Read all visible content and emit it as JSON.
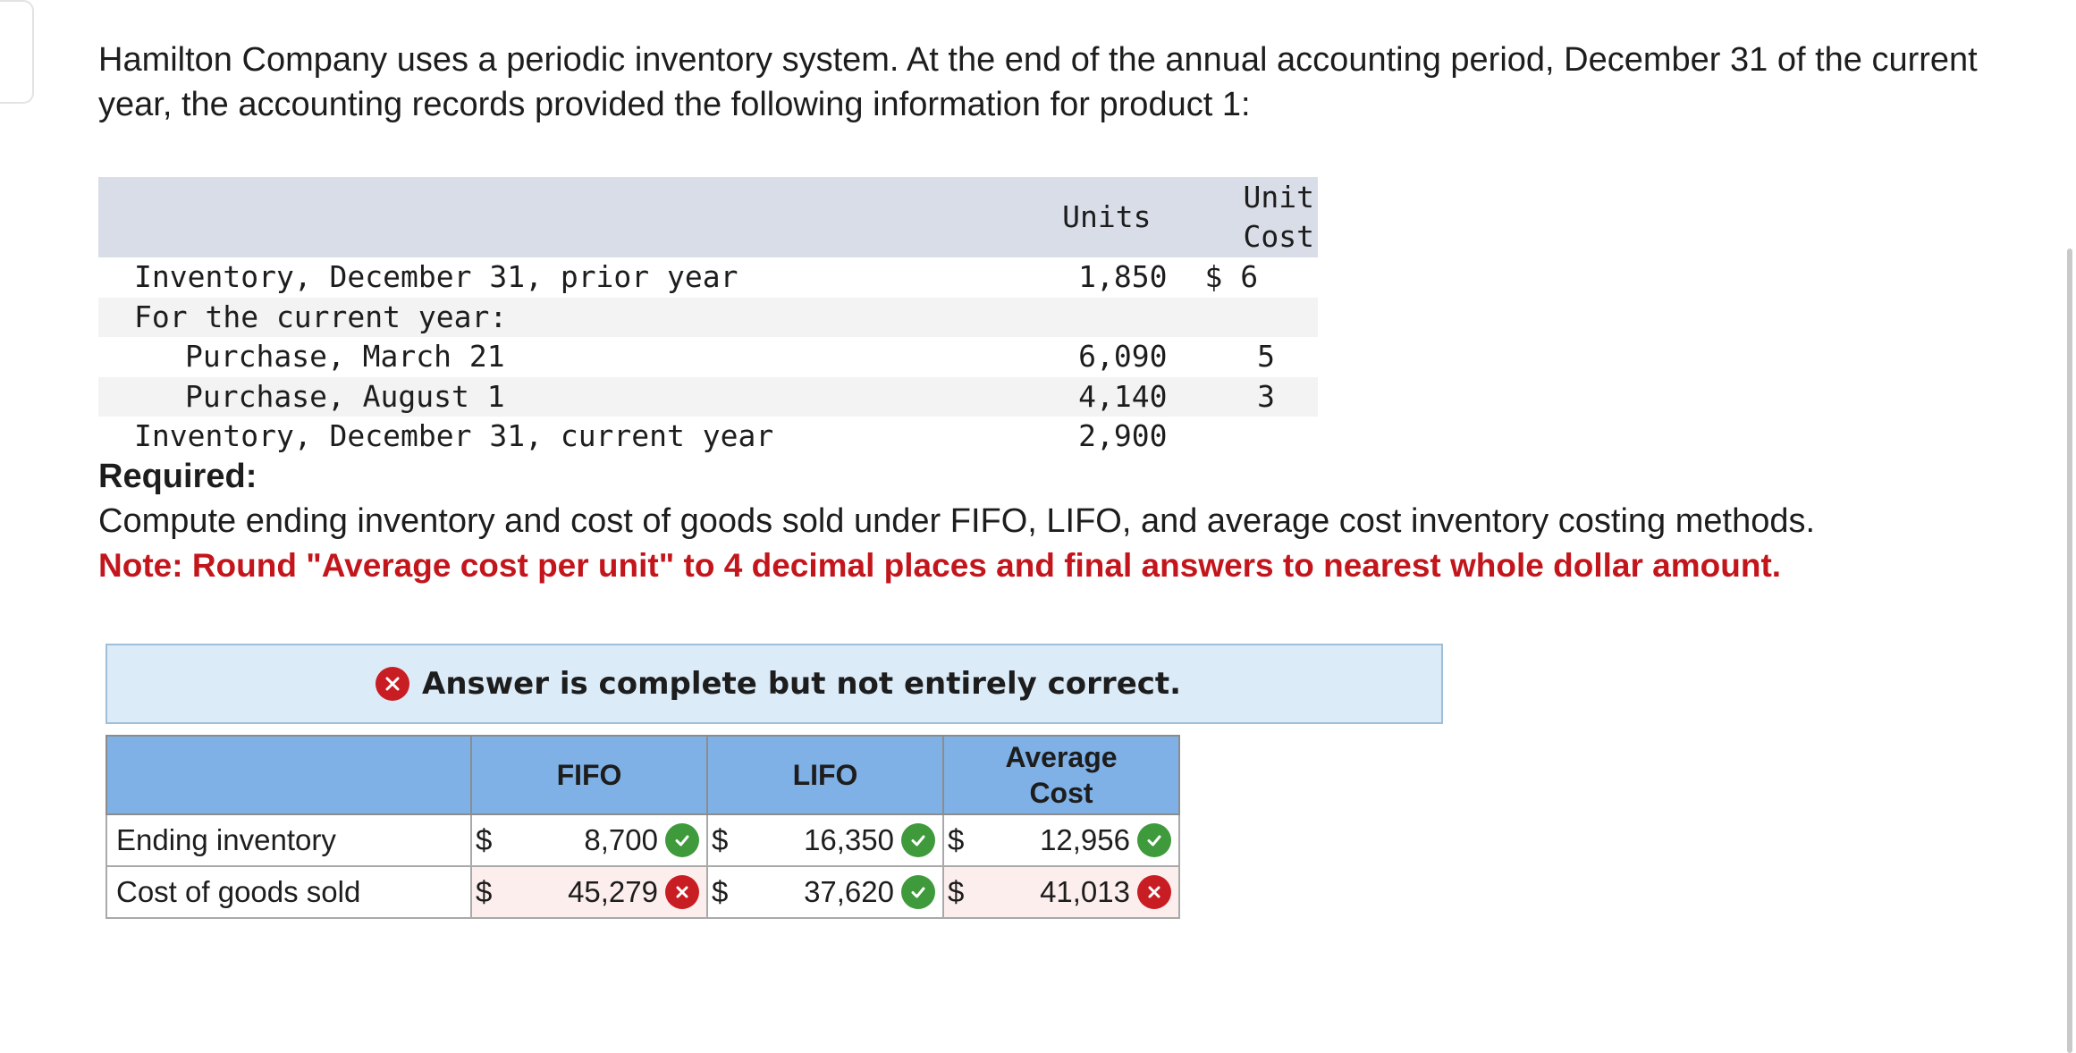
{
  "intro": "Hamilton Company uses a periodic inventory system. At the end of the annual accounting period, December 31 of the current year, the accounting records provided the following information for product 1:",
  "data_table": {
    "headers": {
      "units": "Units",
      "unit_cost_line1": "Unit",
      "unit_cost_line2": "Cost"
    },
    "rows": [
      {
        "label": "Inventory, December 31, prior year",
        "units": "1,850",
        "cost": "$ 6"
      },
      {
        "label": "For the current year:",
        "units": "",
        "cost": ""
      },
      {
        "label": "Purchase, March 21",
        "units": "6,090",
        "cost": "5"
      },
      {
        "label": "Purchase, August 1",
        "units": "4,140",
        "cost": "3"
      },
      {
        "label": "Inventory, December 31, current year",
        "units": "2,900",
        "cost": ""
      }
    ]
  },
  "required": {
    "title": "Required:",
    "text": "Compute ending inventory and cost of goods sold under FIFO, LIFO, and average cost inventory costing methods.",
    "note": "Note: Round \"Average cost per unit\" to 4 decimal places and final answers to nearest whole dollar amount."
  },
  "banner": {
    "text": "Answer is complete but not entirely correct.",
    "icon": "x-circle-icon",
    "color": "#c91d24"
  },
  "answer_table": {
    "headers": {
      "fifo": "FIFO",
      "lifo": "LIFO",
      "avg_line1": "Average",
      "avg_line2": "Cost"
    },
    "currency": "$",
    "rows": [
      {
        "label": "Ending inventory",
        "fifo": "8,700",
        "fifo_status": "correct",
        "lifo": "16,350",
        "lifo_status": "correct",
        "avg": "12,956",
        "avg_status": "correct"
      },
      {
        "label": "Cost of goods sold",
        "fifo": "45,279",
        "fifo_status": "incorrect",
        "lifo": "37,620",
        "lifo_status": "correct",
        "avg": "41,013",
        "avg_status": "incorrect"
      }
    ],
    "colors": {
      "correct": "#3f9a3c",
      "incorrect": "#c91d24",
      "header_bg": "#7fb1e6"
    }
  }
}
